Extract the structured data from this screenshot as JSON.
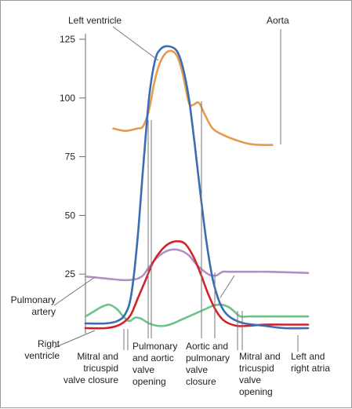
{
  "chart_data": {
    "type": "line",
    "title": "",
    "xlabel": "",
    "ylabel": "",
    "ylim": [
      0,
      130
    ],
    "y_ticks": [
      "25",
      "50",
      "75",
      "100",
      "125"
    ],
    "grid": false,
    "legend": "none",
    "series": [
      {
        "name": "Left ventricle",
        "color": "#3a6db3",
        "points": [
          [
            0,
            4
          ],
          [
            5,
            4
          ],
          [
            8,
            5
          ],
          [
            10,
            8
          ],
          [
            11.5,
            16
          ],
          [
            13,
            38
          ],
          [
            14.5,
            70
          ],
          [
            16,
            100
          ],
          [
            17.5,
            116
          ],
          [
            19,
            121
          ],
          [
            21,
            122
          ],
          [
            23,
            120
          ],
          [
            24.5,
            113
          ],
          [
            26,
            100
          ],
          [
            27.5,
            80
          ],
          [
            29,
            58
          ],
          [
            30.5,
            38
          ],
          [
            32,
            23
          ],
          [
            33.5,
            14
          ],
          [
            35,
            9
          ],
          [
            37,
            6
          ],
          [
            40,
            4
          ],
          [
            45,
            3
          ],
          [
            50,
            2
          ],
          [
            56,
            2
          ]
        ]
      },
      {
        "name": "Aorta",
        "color": "#e59b4b",
        "points": [
          [
            7,
            87
          ],
          [
            10,
            86
          ],
          [
            13,
            87
          ],
          [
            14.5,
            88
          ],
          [
            16,
            95
          ],
          [
            17.5,
            108
          ],
          [
            19,
            116
          ],
          [
            21,
            120
          ],
          [
            23,
            118
          ],
          [
            24.5,
            110
          ],
          [
            26,
            98
          ],
          [
            27,
            97
          ],
          [
            28.5,
            98
          ],
          [
            30,
            93
          ],
          [
            32,
            87
          ],
          [
            35,
            84
          ],
          [
            38,
            82
          ],
          [
            41,
            80.5
          ],
          [
            44,
            80
          ],
          [
            47,
            80
          ]
        ]
      },
      {
        "name": "Right ventricle",
        "color": "#d0242d",
        "points": [
          [
            0,
            2
          ],
          [
            5,
            2
          ],
          [
            8,
            3
          ],
          [
            10,
            5
          ],
          [
            11.5,
            8
          ],
          [
            13,
            14
          ],
          [
            15,
            22
          ],
          [
            17,
            30
          ],
          [
            19,
            35
          ],
          [
            21,
            38
          ],
          [
            23,
            39
          ],
          [
            25,
            38
          ],
          [
            27,
            33
          ],
          [
            29,
            25
          ],
          [
            31,
            16
          ],
          [
            33,
            9
          ],
          [
            35,
            5
          ],
          [
            38,
            3
          ],
          [
            41,
            3
          ],
          [
            45,
            3.5
          ],
          [
            50,
            3.5
          ],
          [
            56,
            3.5
          ]
        ]
      },
      {
        "name": "Pulmonary artery",
        "color": "#b28fc4",
        "points": [
          [
            0,
            24
          ],
          [
            3,
            23.5
          ],
          [
            6,
            23
          ],
          [
            9,
            22.5
          ],
          [
            11,
            22.5
          ],
          [
            13,
            23
          ],
          [
            14.5,
            24.5
          ],
          [
            16,
            28
          ],
          [
            18,
            32
          ],
          [
            20,
            34.5
          ],
          [
            22,
            35.5
          ],
          [
            24,
            35
          ],
          [
            26,
            33
          ],
          [
            28,
            29
          ],
          [
            30,
            26
          ],
          [
            31.5,
            24.5
          ],
          [
            33,
            24.5
          ],
          [
            34.5,
            26
          ],
          [
            36,
            26
          ],
          [
            40,
            26
          ],
          [
            46,
            26
          ],
          [
            56,
            25.5
          ]
        ]
      },
      {
        "name": "Left and right atria",
        "color": "#6cc38a",
        "points": [
          [
            0,
            7
          ],
          [
            2,
            9
          ],
          [
            4,
            11
          ],
          [
            6,
            12
          ],
          [
            8,
            10
          ],
          [
            9.5,
            7
          ],
          [
            11,
            5
          ],
          [
            12.5,
            6.5
          ],
          [
            14,
            6
          ],
          [
            16,
            4
          ],
          [
            18,
            3
          ],
          [
            20,
            3
          ],
          [
            22,
            4
          ],
          [
            24,
            5.5
          ],
          [
            26,
            7
          ],
          [
            28,
            8.5
          ],
          [
            30,
            10
          ],
          [
            32,
            11.5
          ],
          [
            34,
            12
          ],
          [
            36,
            11
          ],
          [
            37.5,
            9
          ],
          [
            39,
            7
          ],
          [
            41,
            7
          ],
          [
            45,
            7
          ],
          [
            50,
            7
          ],
          [
            56,
            7
          ]
        ]
      }
    ],
    "series_labels": [
      {
        "key": "lv",
        "text": [
          "Left ventricle"
        ]
      },
      {
        "key": "ao",
        "text": [
          "Aorta"
        ]
      },
      {
        "key": "pa",
        "text": [
          "Pulmonary",
          "artery"
        ]
      },
      {
        "key": "rv",
        "text": [
          "Right",
          "ventricle"
        ]
      }
    ],
    "event_labels": [
      {
        "key": "mitral_closure",
        "text": [
          "Mitral and",
          "tricuspid",
          "valve closure"
        ]
      },
      {
        "key": "pa_open",
        "text": [
          "Pulmonary",
          "and aortic",
          "valve",
          "opening"
        ]
      },
      {
        "key": "ap_close",
        "text": [
          "Aortic and",
          "pulmonary",
          "valve",
          "closure"
        ]
      },
      {
        "key": "mitral_open",
        "text": [
          "Mitral and",
          "tricuspid",
          "valve",
          "opening"
        ]
      },
      {
        "key": "atria",
        "text": [
          "Left and",
          "right atria"
        ]
      }
    ]
  }
}
